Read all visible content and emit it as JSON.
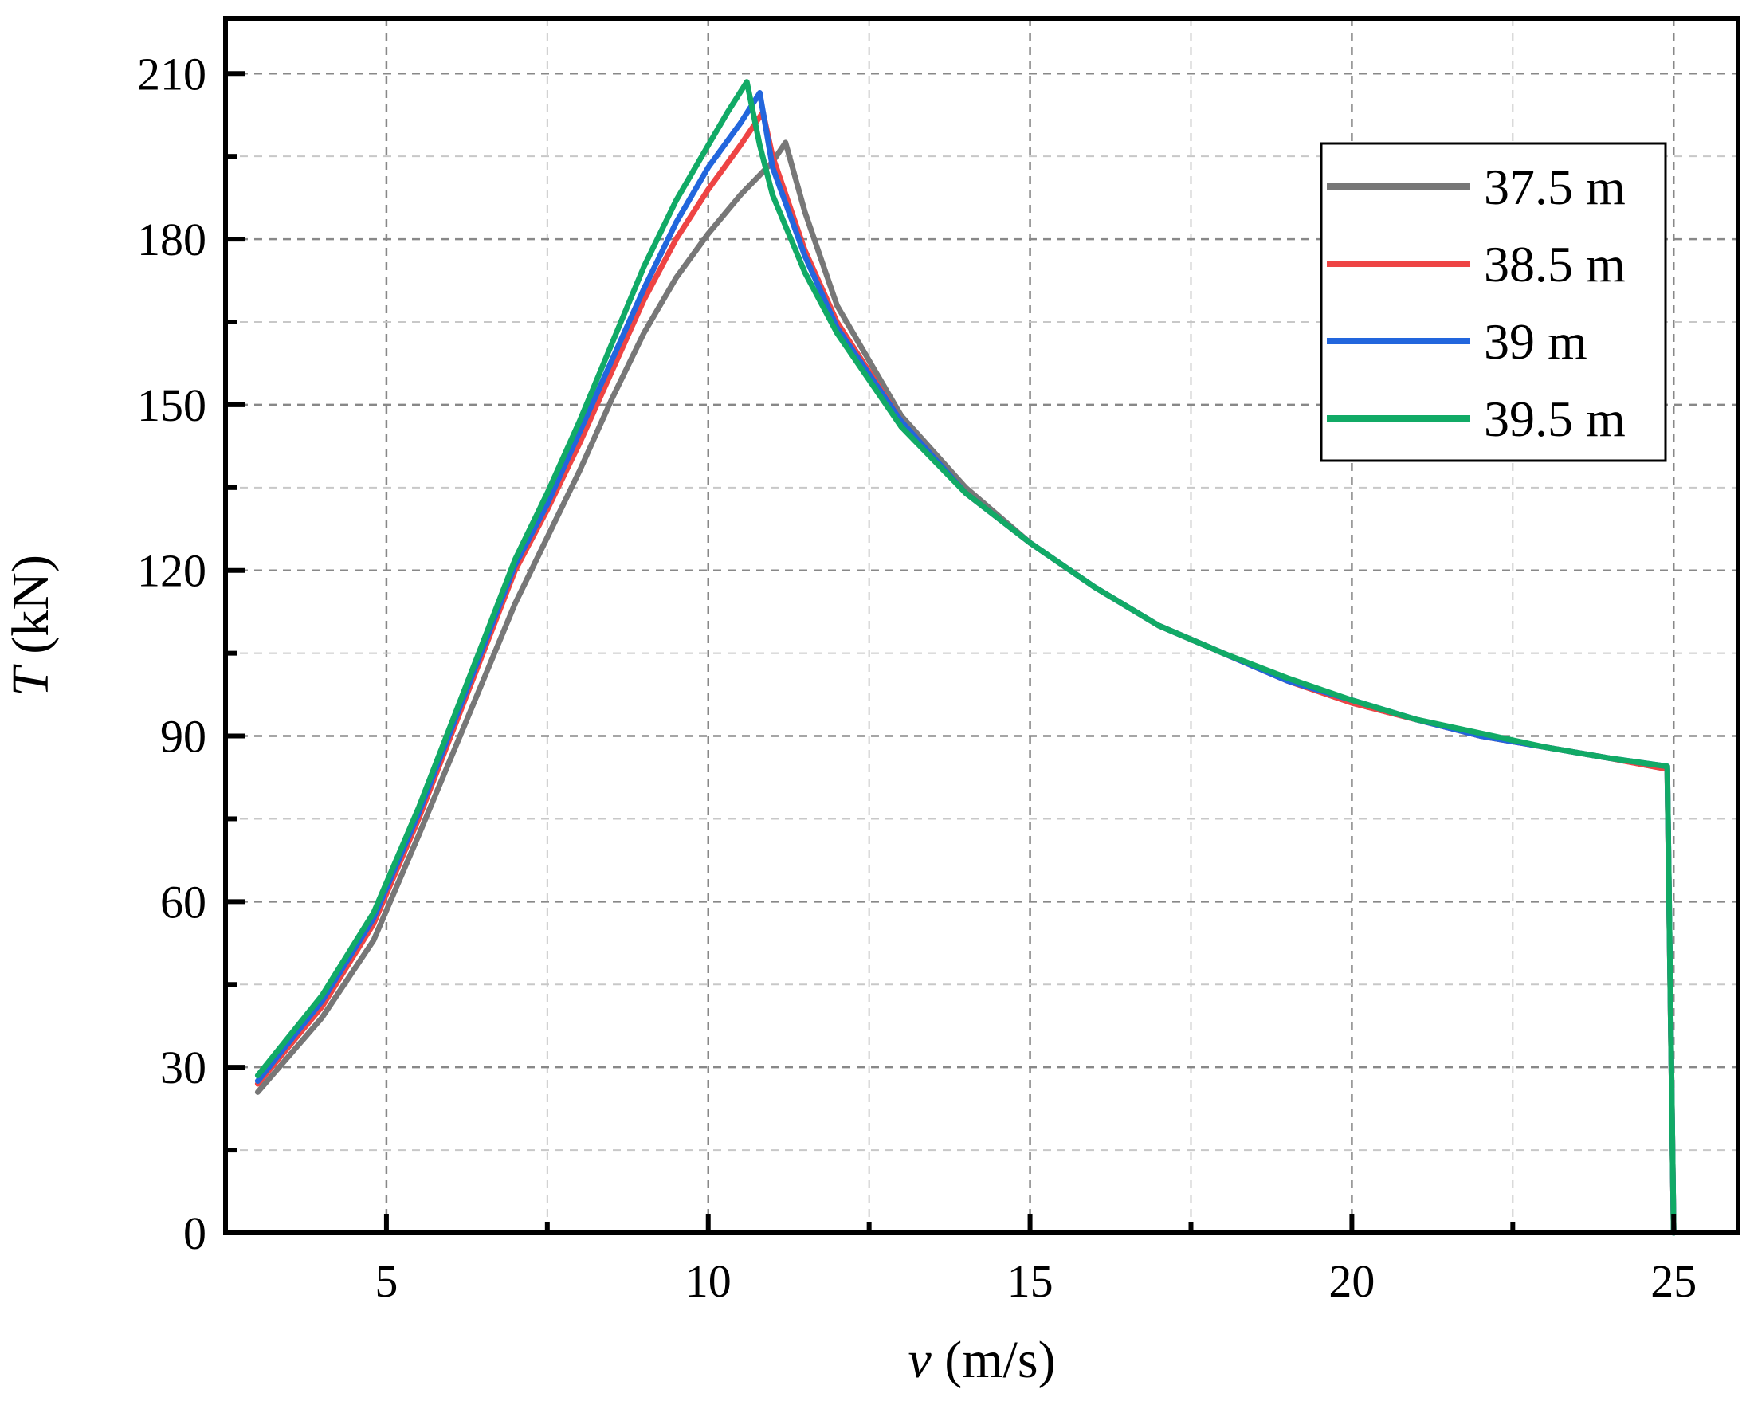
{
  "chart_data": {
    "type": "line",
    "xlabel_var": "v",
    "xlabel_unit": " (m/s)",
    "ylabel_var": "T",
    "ylabel_unit": " (kN)",
    "xlim": [
      2.5,
      26
    ],
    "ylim": [
      0,
      220
    ],
    "xticks": [
      5,
      10,
      15,
      20,
      25
    ],
    "yticks": [
      0,
      30,
      60,
      90,
      120,
      150,
      180,
      210
    ],
    "grid": true,
    "legend_position": "top-right",
    "series": [
      {
        "name": "37.5 m",
        "color": "#777777",
        "points": [
          [
            3.0,
            25.5
          ],
          [
            4.0,
            39.0
          ],
          [
            4.8,
            53.0
          ],
          [
            5.5,
            72.0
          ],
          [
            6.0,
            86.0
          ],
          [
            6.5,
            100.0
          ],
          [
            7.0,
            114.0
          ],
          [
            7.5,
            126.0
          ],
          [
            8.0,
            138.0
          ],
          [
            8.5,
            151.0
          ],
          [
            9.0,
            163.0
          ],
          [
            9.5,
            173.0
          ],
          [
            10.0,
            181.0
          ],
          [
            10.5,
            188.0
          ],
          [
            11.0,
            194.0
          ],
          [
            11.2,
            197.5
          ],
          [
            11.5,
            185.0
          ],
          [
            12.0,
            168.0
          ],
          [
            13.0,
            148.0
          ],
          [
            14.0,
            135.0
          ],
          [
            15.0,
            125.0
          ],
          [
            16.0,
            117.0
          ],
          [
            17.0,
            110.0
          ],
          [
            18.0,
            105.0
          ],
          [
            19.0,
            100.0
          ],
          [
            20.0,
            96.0
          ],
          [
            21.0,
            93.0
          ],
          [
            22.0,
            90.0
          ],
          [
            23.0,
            88.0
          ],
          [
            24.0,
            86.0
          ],
          [
            24.9,
            84.0
          ],
          [
            25.0,
            0.0
          ]
        ]
      },
      {
        "name": "38.5 m",
        "color": "#ee4444",
        "points": [
          [
            3.0,
            27.0
          ],
          [
            4.0,
            41.0
          ],
          [
            4.8,
            56.0
          ],
          [
            5.5,
            75.0
          ],
          [
            6.0,
            90.0
          ],
          [
            6.5,
            105.0
          ],
          [
            7.0,
            120.0
          ],
          [
            7.5,
            131.0
          ],
          [
            8.0,
            143.0
          ],
          [
            8.5,
            156.0
          ],
          [
            9.0,
            169.0
          ],
          [
            9.5,
            180.0
          ],
          [
            10.0,
            189.0
          ],
          [
            10.5,
            197.0
          ],
          [
            10.85,
            203.0
          ],
          [
            11.0,
            195.0
          ],
          [
            11.5,
            178.0
          ],
          [
            12.0,
            165.0
          ],
          [
            13.0,
            147.0
          ],
          [
            14.0,
            134.0
          ],
          [
            15.0,
            125.0
          ],
          [
            16.0,
            117.0
          ],
          [
            17.0,
            110.0
          ],
          [
            18.0,
            105.0
          ],
          [
            19.0,
            100.0
          ],
          [
            20.0,
            96.0
          ],
          [
            21.0,
            93.0
          ],
          [
            22.0,
            90.0
          ],
          [
            23.0,
            88.0
          ],
          [
            24.0,
            86.0
          ],
          [
            24.9,
            84.0
          ],
          [
            25.0,
            0.0
          ]
        ]
      },
      {
        "name": "39 m",
        "color": "#2266dd",
        "points": [
          [
            3.0,
            27.5
          ],
          [
            4.0,
            42.0
          ],
          [
            4.8,
            57.0
          ],
          [
            5.5,
            76.0
          ],
          [
            6.0,
            91.0
          ],
          [
            6.5,
            106.0
          ],
          [
            7.0,
            121.0
          ],
          [
            7.5,
            132.0
          ],
          [
            8.0,
            145.0
          ],
          [
            8.5,
            158.0
          ],
          [
            9.0,
            171.0
          ],
          [
            9.5,
            183.0
          ],
          [
            10.0,
            193.0
          ],
          [
            10.5,
            201.0
          ],
          [
            10.8,
            206.5
          ],
          [
            11.0,
            193.0
          ],
          [
            11.5,
            177.0
          ],
          [
            12.0,
            164.0
          ],
          [
            13.0,
            147.0
          ],
          [
            14.0,
            134.0
          ],
          [
            15.0,
            125.0
          ],
          [
            16.0,
            117.0
          ],
          [
            17.0,
            110.0
          ],
          [
            18.0,
            105.0
          ],
          [
            19.0,
            100.0
          ],
          [
            20.0,
            96.5
          ],
          [
            21.0,
            93.0
          ],
          [
            22.0,
            90.0
          ],
          [
            23.0,
            88.0
          ],
          [
            24.0,
            86.0
          ],
          [
            24.9,
            84.5
          ],
          [
            25.0,
            0.0
          ]
        ]
      },
      {
        "name": "39.5 m",
        "color": "#11aa66",
        "points": [
          [
            3.0,
            28.5
          ],
          [
            4.0,
            43.0
          ],
          [
            4.8,
            58.0
          ],
          [
            5.5,
            77.0
          ],
          [
            6.0,
            92.0
          ],
          [
            6.5,
            107.0
          ],
          [
            7.0,
            122.0
          ],
          [
            7.5,
            134.0
          ],
          [
            8.0,
            147.0
          ],
          [
            8.5,
            161.0
          ],
          [
            9.0,
            175.0
          ],
          [
            9.5,
            187.0
          ],
          [
            10.0,
            197.0
          ],
          [
            10.3,
            203.0
          ],
          [
            10.6,
            208.5
          ],
          [
            10.8,
            197.0
          ],
          [
            11.0,
            188.0
          ],
          [
            11.5,
            174.0
          ],
          [
            12.0,
            163.0
          ],
          [
            13.0,
            146.0
          ],
          [
            14.0,
            134.0
          ],
          [
            15.0,
            125.0
          ],
          [
            16.0,
            117.0
          ],
          [
            17.0,
            110.0
          ],
          [
            18.0,
            105.0
          ],
          [
            19.0,
            100.5
          ],
          [
            20.0,
            96.5
          ],
          [
            21.0,
            93.0
          ],
          [
            22.0,
            90.5
          ],
          [
            23.0,
            88.0
          ],
          [
            24.0,
            86.0
          ],
          [
            24.9,
            84.5
          ],
          [
            25.0,
            0.0
          ]
        ]
      }
    ]
  }
}
